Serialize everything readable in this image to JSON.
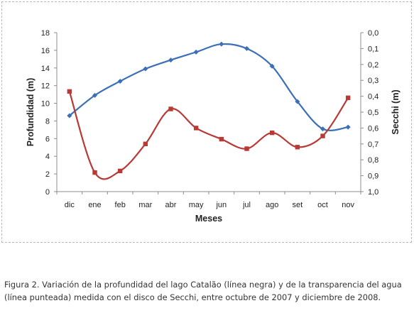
{
  "chart_data": {
    "type": "line",
    "categories": [
      "dic",
      "ene",
      "feb",
      "mar",
      "abr",
      "may",
      "jun",
      "jul",
      "ago",
      "set",
      "oct",
      "nov"
    ],
    "xlabel": "Meses",
    "ylabel": "Profundidad (m)",
    "ylabel_right": "Secchi (m)",
    "ylim": [
      0,
      18
    ],
    "ylim_right": [
      0.0,
      1.0
    ],
    "yticks": [
      "0",
      "2",
      "4",
      "6",
      "8",
      "10",
      "12",
      "14",
      "16",
      "18"
    ],
    "yticks_right": [
      "0,0",
      "0,1",
      "0,2",
      "0,3",
      "0,4",
      "0,5",
      "0,6",
      "0,7",
      "0,8",
      "0,9",
      "1,0"
    ],
    "right_axis_inverted": true,
    "grid": false,
    "series": [
      {
        "axis": "left",
        "color": "#3b6fb6",
        "marker": "diamond",
        "values": [
          8.6,
          10.9,
          12.5,
          13.9,
          14.9,
          15.8,
          16.7,
          16.2,
          14.2,
          10.2,
          7.1,
          7.3
        ]
      },
      {
        "axis": "right",
        "color": "#b83a36",
        "marker": "square",
        "values": [
          0.37,
          0.88,
          0.87,
          0.7,
          0.48,
          0.6,
          0.67,
          0.73,
          0.63,
          0.72,
          0.65,
          0.41
        ]
      }
    ]
  },
  "caption": "Figura 2. Variación de la profundidad del lago Catalão (línea negra) y de la transparencia del agua (línea punteada) medida con el disco de Secchi, entre octubre de 2007 y diciembre de 2008."
}
